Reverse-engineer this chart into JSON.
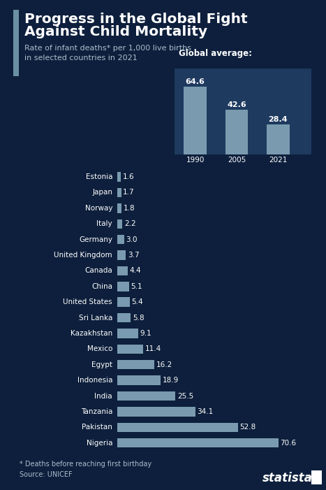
{
  "title_line1": "Progress in the Global Fight",
  "title_line2": "Against Child Mortality",
  "subtitle": "Rate of infant deaths* per 1,000 live births\nin selected countries in 2021",
  "bg_color": "#0d1f3c",
  "bar_color": "#7a9baf",
  "text_color": "#ffffff",
  "subtitle_color": "#aabfcc",
  "countries": [
    "Estonia",
    "Japan",
    "Norway",
    "Italy",
    "Germany",
    "United Kingdom",
    "Canada",
    "China",
    "United States",
    "Sri Lanka",
    "Kazakhstan",
    "Mexico",
    "Egypt",
    "Indonesia",
    "India",
    "Tanzania",
    "Pakistan",
    "Nigeria"
  ],
  "values": [
    1.6,
    1.7,
    1.8,
    2.2,
    3.0,
    3.7,
    4.4,
    5.1,
    5.4,
    5.8,
    9.1,
    11.4,
    16.2,
    18.9,
    25.5,
    34.1,
    52.8,
    70.6
  ],
  "global_years": [
    "1990",
    "2005",
    "2021"
  ],
  "global_values": [
    64.6,
    42.6,
    28.4
  ],
  "footnote": "* Deaths before reaching first birthday\nSource: UNICEF",
  "inset_bg": "#1e3a5f",
  "inset_title": "Global average:",
  "accent_bar_color": "#6b8fa3"
}
